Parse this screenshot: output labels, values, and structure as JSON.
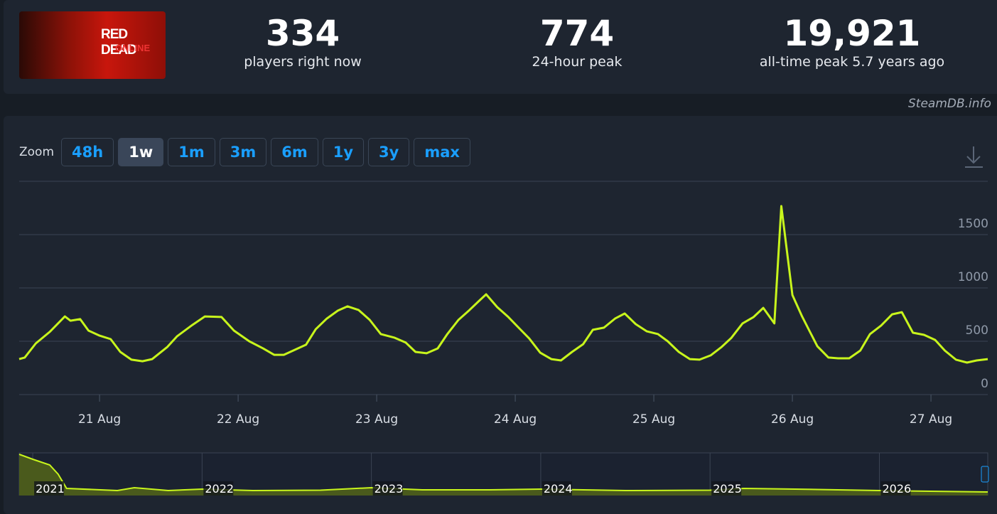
{
  "header": {
    "logo": {
      "title": "RED DEAD",
      "subtitle": "ONLINE"
    },
    "stats": [
      {
        "value": "334",
        "label": "players right now"
      },
      {
        "value": "774",
        "label": "24-hour peak"
      },
      {
        "value": "19,921",
        "label": "all-time peak 5.7 years ago"
      }
    ]
  },
  "watermark": "SteamDB.info",
  "zoom": {
    "label": "Zoom",
    "buttons": [
      "48h",
      "1w",
      "1m",
      "3m",
      "6m",
      "1y",
      "3y",
      "max"
    ],
    "active": 1
  },
  "chart_data": [
    {
      "type": "line",
      "x": [
        20.42,
        20.46,
        20.54,
        20.64,
        20.75,
        20.79,
        20.86,
        20.92,
        21.0,
        21.08,
        21.15,
        21.23,
        21.31,
        21.38,
        21.49,
        21.56,
        21.67,
        21.76,
        21.88,
        21.97,
        22.08,
        22.18,
        22.26,
        22.33,
        22.41,
        22.49,
        22.56,
        22.64,
        22.72,
        22.79,
        22.87,
        22.95,
        23.03,
        23.13,
        23.21,
        23.28,
        23.36,
        23.44,
        23.51,
        23.59,
        23.67,
        23.74,
        23.79,
        23.87,
        23.95,
        24.03,
        24.1,
        24.18,
        24.26,
        24.33,
        24.41,
        24.49,
        24.56,
        24.64,
        24.72,
        24.79,
        24.87,
        24.95,
        25.03,
        25.1,
        25.18,
        25.26,
        25.33,
        25.41,
        25.49,
        25.56,
        25.64,
        25.72,
        25.79,
        25.87,
        25.92,
        26.0,
        26.07,
        26.13,
        26.18,
        26.26,
        26.33,
        26.41,
        26.49,
        26.56,
        26.64,
        26.72,
        26.79,
        26.87,
        26.95,
        27.03,
        27.1,
        27.18,
        27.26,
        27.33,
        27.41
      ],
      "series": [
        {
          "color": "#c8f51c",
          "values": [
            333,
            347,
            480,
            587,
            733,
            693,
            707,
            600,
            553,
            520,
            400,
            327,
            313,
            333,
            447,
            547,
            653,
            733,
            727,
            600,
            500,
            433,
            373,
            373,
            420,
            467,
            613,
            713,
            787,
            827,
            793,
            700,
            567,
            533,
            487,
            400,
            387,
            433,
            567,
            700,
            793,
            880,
            940,
            820,
            727,
            620,
            527,
            393,
            333,
            320,
            400,
            473,
            607,
            627,
            713,
            760,
            660,
            593,
            567,
            500,
            400,
            333,
            327,
            367,
            447,
            533,
            667,
            727,
            813,
            667,
            1767,
            933,
            733,
            580,
            453,
            347,
            340,
            340,
            413,
            567,
            647,
            753,
            773,
            580,
            560,
            513,
            413,
            327,
            300,
            320,
            333
          ]
        }
      ],
      "xlim": [
        20.42,
        27.41
      ],
      "ylim": [
        0,
        2000
      ],
      "xticks": [
        {
          "value": 21,
          "label": "21 Aug"
        },
        {
          "value": 22,
          "label": "22 Aug"
        },
        {
          "value": 23,
          "label": "23 Aug"
        },
        {
          "value": 24,
          "label": "24 Aug"
        },
        {
          "value": 25,
          "label": "25 Aug"
        },
        {
          "value": 26,
          "label": "26 Aug"
        },
        {
          "value": 27,
          "label": "27 Aug"
        }
      ],
      "yticks": [
        0,
        500,
        1000,
        1500
      ],
      "grid": true
    },
    {
      "type": "area",
      "x": [
        2020.92,
        2021.0,
        2021.1,
        2021.15,
        2021.2,
        2021.4,
        2021.5,
        2021.6,
        2021.8,
        2022.0,
        2022.3,
        2022.7,
        2023.0,
        2023.3,
        2023.7,
        2024.0,
        2024.5,
        2025.0,
        2025.2,
        2025.5,
        2026.0,
        2026.3,
        2026.64
      ],
      "values": [
        5800,
        5100,
        4300,
        3000,
        1000,
        800,
        700,
        1100,
        700,
        900,
        700,
        750,
        1100,
        800,
        800,
        900,
        700,
        750,
        1000,
        900,
        700,
        600,
        500
      ],
      "color": "#c8f51c",
      "fill": "#4a5a1c",
      "xlim": [
        2020.92,
        2026.64
      ],
      "ylim": [
        0,
        6000
      ],
      "xticks": [
        2021,
        2022,
        2023,
        2024,
        2025,
        2026
      ]
    }
  ]
}
